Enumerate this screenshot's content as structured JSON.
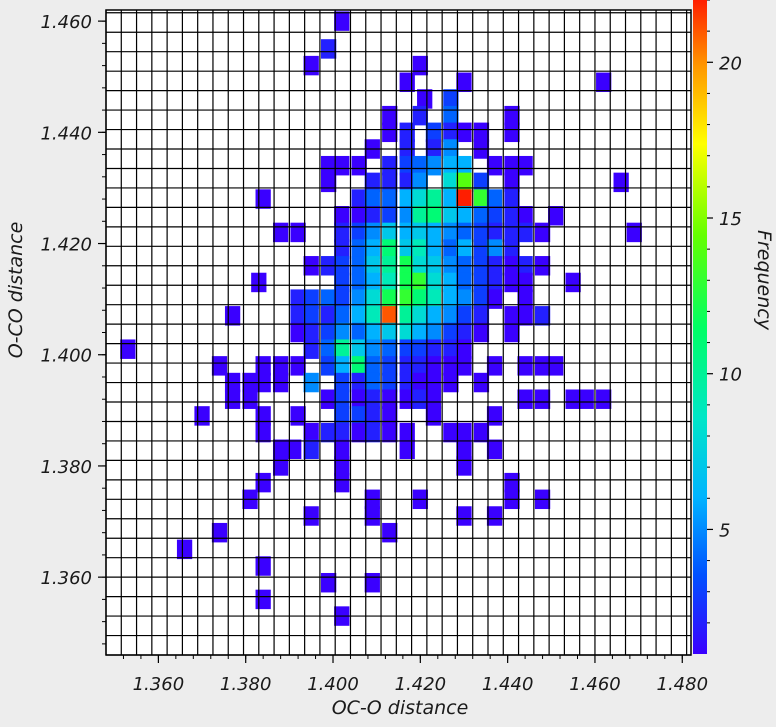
{
  "chart_data": {
    "type": "heatmap",
    "title": "",
    "xlabel": "OC-O distance",
    "ylabel": "O-CO distance",
    "colorbar_label": "Frequency",
    "xlim": [
      1.348,
      1.482
    ],
    "ylim": [
      1.346,
      1.462
    ],
    "bin_width": 0.0035,
    "x_ticks": [
      "1.360",
      "1.380",
      "1.400",
      "1.420",
      "1.440",
      "1.460",
      "1.480"
    ],
    "y_ticks": [
      "1.360",
      "1.380",
      "1.400",
      "1.420",
      "1.440",
      "1.460"
    ],
    "colorbar_ticks": [
      "5",
      "10",
      "15",
      "20"
    ],
    "colorbar_range": [
      1,
      22
    ],
    "colors": {
      "background": "#ededed",
      "cell_empty": "#ffffff",
      "grid": "#000000"
    },
    "bins": [
      [
        1.402,
        1.46,
        1
      ],
      [
        1.399,
        1.455,
        2
      ],
      [
        1.395,
        1.452,
        1
      ],
      [
        1.42,
        1.452,
        1
      ],
      [
        1.417,
        1.449,
        1
      ],
      [
        1.43,
        1.449,
        1
      ],
      [
        1.462,
        1.449,
        1
      ],
      [
        1.421,
        1.446,
        1
      ],
      [
        1.427,
        1.446,
        3
      ],
      [
        1.413,
        1.443,
        1
      ],
      [
        1.42,
        1.443,
        2
      ],
      [
        1.427,
        1.443,
        4
      ],
      [
        1.441,
        1.443,
        1
      ],
      [
        1.413,
        1.44,
        1
      ],
      [
        1.417,
        1.44,
        2
      ],
      [
        1.423,
        1.44,
        3
      ],
      [
        1.427,
        1.44,
        2
      ],
      [
        1.43,
        1.44,
        1
      ],
      [
        1.434,
        1.44,
        1
      ],
      [
        1.441,
        1.44,
        1
      ],
      [
        1.409,
        1.437,
        1
      ],
      [
        1.417,
        1.437,
        2
      ],
      [
        1.423,
        1.437,
        2
      ],
      [
        1.427,
        1.437,
        5
      ],
      [
        1.434,
        1.437,
        1
      ],
      [
        1.399,
        1.434,
        1
      ],
      [
        1.402,
        1.434,
        1
      ],
      [
        1.406,
        1.434,
        1
      ],
      [
        1.413,
        1.434,
        2
      ],
      [
        1.417,
        1.434,
        3
      ],
      [
        1.42,
        1.434,
        4
      ],
      [
        1.423,
        1.434,
        5
      ],
      [
        1.427,
        1.434,
        6
      ],
      [
        1.43,
        1.434,
        6
      ],
      [
        1.437,
        1.434,
        1
      ],
      [
        1.441,
        1.434,
        1
      ],
      [
        1.444,
        1.434,
        1
      ],
      [
        1.399,
        1.431,
        1
      ],
      [
        1.409,
        1.431,
        2
      ],
      [
        1.413,
        1.431,
        2
      ],
      [
        1.417,
        1.431,
        2
      ],
      [
        1.42,
        1.431,
        5
      ],
      [
        1.427,
        1.431,
        8
      ],
      [
        1.43,
        1.431,
        14
      ],
      [
        1.434,
        1.431,
        3
      ],
      [
        1.441,
        1.431,
        1
      ],
      [
        1.466,
        1.431,
        1
      ],
      [
        1.384,
        1.428,
        1
      ],
      [
        1.406,
        1.428,
        2
      ],
      [
        1.409,
        1.428,
        4
      ],
      [
        1.413,
        1.428,
        4
      ],
      [
        1.417,
        1.428,
        6
      ],
      [
        1.42,
        1.428,
        8
      ],
      [
        1.423,
        1.428,
        10
      ],
      [
        1.427,
        1.428,
        6
      ],
      [
        1.43,
        1.428,
        22
      ],
      [
        1.434,
        1.428,
        13
      ],
      [
        1.437,
        1.428,
        4
      ],
      [
        1.441,
        1.428,
        2
      ],
      [
        1.402,
        1.425,
        1
      ],
      [
        1.406,
        1.425,
        1
      ],
      [
        1.409,
        1.425,
        2
      ],
      [
        1.413,
        1.425,
        3
      ],
      [
        1.417,
        1.425,
        5
      ],
      [
        1.42,
        1.425,
        10
      ],
      [
        1.423,
        1.425,
        11
      ],
      [
        1.427,
        1.425,
        7
      ],
      [
        1.43,
        1.425,
        6
      ],
      [
        1.434,
        1.425,
        4
      ],
      [
        1.437,
        1.425,
        3
      ],
      [
        1.441,
        1.425,
        2
      ],
      [
        1.444,
        1.425,
        1
      ],
      [
        1.451,
        1.425,
        1
      ],
      [
        1.388,
        1.422,
        1
      ],
      [
        1.392,
        1.422,
        1
      ],
      [
        1.402,
        1.422,
        2
      ],
      [
        1.406,
        1.422,
        3
      ],
      [
        1.409,
        1.422,
        5
      ],
      [
        1.413,
        1.422,
        7
      ],
      [
        1.417,
        1.422,
        6
      ],
      [
        1.42,
        1.422,
        7
      ],
      [
        1.423,
        1.422,
        6
      ],
      [
        1.427,
        1.422,
        5
      ],
      [
        1.43,
        1.422,
        4
      ],
      [
        1.434,
        1.422,
        3
      ],
      [
        1.437,
        1.422,
        2
      ],
      [
        1.441,
        1.422,
        2
      ],
      [
        1.444,
        1.422,
        2
      ],
      [
        1.448,
        1.422,
        1
      ],
      [
        1.469,
        1.422,
        1
      ],
      [
        1.402,
        1.419,
        2
      ],
      [
        1.406,
        1.419,
        4
      ],
      [
        1.409,
        1.419,
        6
      ],
      [
        1.413,
        1.419,
        11
      ],
      [
        1.417,
        1.419,
        7
      ],
      [
        1.42,
        1.419,
        9
      ],
      [
        1.423,
        1.419,
        6
      ],
      [
        1.427,
        1.419,
        4
      ],
      [
        1.43,
        1.419,
        6
      ],
      [
        1.434,
        1.419,
        3
      ],
      [
        1.437,
        1.419,
        5
      ],
      [
        1.441,
        1.419,
        2
      ],
      [
        1.395,
        1.416,
        1
      ],
      [
        1.399,
        1.416,
        2
      ],
      [
        1.402,
        1.416,
        3
      ],
      [
        1.406,
        1.416,
        4
      ],
      [
        1.409,
        1.416,
        7
      ],
      [
        1.413,
        1.416,
        10
      ],
      [
        1.417,
        1.416,
        12
      ],
      [
        1.42,
        1.416,
        8
      ],
      [
        1.423,
        1.416,
        7
      ],
      [
        1.427,
        1.416,
        5
      ],
      [
        1.43,
        1.416,
        4
      ],
      [
        1.434,
        1.416,
        3
      ],
      [
        1.437,
        1.416,
        2
      ],
      [
        1.441,
        1.416,
        1
      ],
      [
        1.444,
        1.416,
        2
      ],
      [
        1.448,
        1.416,
        1
      ],
      [
        1.383,
        1.413,
        1
      ],
      [
        1.402,
        1.413,
        3
      ],
      [
        1.406,
        1.413,
        4
      ],
      [
        1.409,
        1.413,
        6
      ],
      [
        1.413,
        1.413,
        9
      ],
      [
        1.417,
        1.413,
        12
      ],
      [
        1.42,
        1.413,
        13
      ],
      [
        1.423,
        1.413,
        8
      ],
      [
        1.427,
        1.413,
        6
      ],
      [
        1.43,
        1.413,
        4
      ],
      [
        1.434,
        1.413,
        3
      ],
      [
        1.437,
        1.413,
        2
      ],
      [
        1.441,
        1.413,
        1
      ],
      [
        1.444,
        1.413,
        1
      ],
      [
        1.455,
        1.413,
        1
      ],
      [
        1.392,
        1.41,
        2
      ],
      [
        1.395,
        1.41,
        3
      ],
      [
        1.399,
        1.41,
        4
      ],
      [
        1.402,
        1.41,
        3
      ],
      [
        1.406,
        1.41,
        5
      ],
      [
        1.409,
        1.41,
        8
      ],
      [
        1.413,
        1.41,
        12
      ],
      [
        1.417,
        1.41,
        13
      ],
      [
        1.42,
        1.41,
        11
      ],
      [
        1.423,
        1.41,
        9
      ],
      [
        1.427,
        1.41,
        6
      ],
      [
        1.43,
        1.41,
        5
      ],
      [
        1.434,
        1.41,
        3
      ],
      [
        1.437,
        1.41,
        1
      ],
      [
        1.444,
        1.41,
        1
      ],
      [
        1.377,
        1.407,
        1
      ],
      [
        1.392,
        1.407,
        2
      ],
      [
        1.395,
        1.407,
        3
      ],
      [
        1.399,
        1.407,
        2
      ],
      [
        1.402,
        1.407,
        4
      ],
      [
        1.406,
        1.407,
        6
      ],
      [
        1.409,
        1.407,
        9
      ],
      [
        1.413,
        1.407,
        21
      ],
      [
        1.417,
        1.407,
        10
      ],
      [
        1.42,
        1.407,
        8
      ],
      [
        1.423,
        1.407,
        6
      ],
      [
        1.427,
        1.407,
        5
      ],
      [
        1.43,
        1.407,
        3
      ],
      [
        1.434,
        1.407,
        2
      ],
      [
        1.441,
        1.407,
        1
      ],
      [
        1.444,
        1.407,
        1
      ],
      [
        1.448,
        1.407,
        2
      ],
      [
        1.392,
        1.404,
        1
      ],
      [
        1.395,
        1.404,
        2
      ],
      [
        1.399,
        1.404,
        3
      ],
      [
        1.402,
        1.404,
        5
      ],
      [
        1.406,
        1.404,
        4
      ],
      [
        1.409,
        1.404,
        6
      ],
      [
        1.413,
        1.404,
        7
      ],
      [
        1.417,
        1.404,
        8
      ],
      [
        1.42,
        1.404,
        6
      ],
      [
        1.423,
        1.404,
        5
      ],
      [
        1.427,
        1.404,
        3
      ],
      [
        1.43,
        1.404,
        2
      ],
      [
        1.434,
        1.404,
        1
      ],
      [
        1.441,
        1.404,
        1
      ],
      [
        1.353,
        1.401,
        1
      ],
      [
        1.395,
        1.401,
        2
      ],
      [
        1.399,
        1.401,
        4
      ],
      [
        1.402,
        1.401,
        10
      ],
      [
        1.406,
        1.401,
        7
      ],
      [
        1.409,
        1.401,
        5
      ],
      [
        1.413,
        1.401,
        4
      ],
      [
        1.417,
        1.401,
        3
      ],
      [
        1.42,
        1.401,
        3
      ],
      [
        1.423,
        1.401,
        2
      ],
      [
        1.427,
        1.401,
        2
      ],
      [
        1.43,
        1.401,
        1
      ],
      [
        1.374,
        1.398,
        1
      ],
      [
        1.384,
        1.398,
        1
      ],
      [
        1.388,
        1.398,
        1
      ],
      [
        1.392,
        1.398,
        1
      ],
      [
        1.399,
        1.398,
        3
      ],
      [
        1.402,
        1.398,
        6
      ],
      [
        1.406,
        1.398,
        11
      ],
      [
        1.409,
        1.398,
        4
      ],
      [
        1.413,
        1.398,
        3
      ],
      [
        1.417,
        1.398,
        2
      ],
      [
        1.42,
        1.398,
        2
      ],
      [
        1.423,
        1.398,
        1
      ],
      [
        1.427,
        1.398,
        1
      ],
      [
        1.43,
        1.398,
        1
      ],
      [
        1.437,
        1.398,
        1
      ],
      [
        1.444,
        1.398,
        1
      ],
      [
        1.448,
        1.398,
        1
      ],
      [
        1.451,
        1.398,
        1
      ],
      [
        1.377,
        1.395,
        1
      ],
      [
        1.381,
        1.395,
        1
      ],
      [
        1.384,
        1.395,
        1
      ],
      [
        1.388,
        1.395,
        1
      ],
      [
        1.395,
        1.395,
        5
      ],
      [
        1.402,
        1.395,
        3
      ],
      [
        1.406,
        1.395,
        2
      ],
      [
        1.409,
        1.395,
        4
      ],
      [
        1.413,
        1.395,
        3
      ],
      [
        1.417,
        1.395,
        2
      ],
      [
        1.42,
        1.395,
        1
      ],
      [
        1.423,
        1.395,
        1
      ],
      [
        1.427,
        1.395,
        1
      ],
      [
        1.434,
        1.395,
        1
      ],
      [
        1.377,
        1.392,
        1
      ],
      [
        1.381,
        1.392,
        1
      ],
      [
        1.399,
        1.392,
        1
      ],
      [
        1.402,
        1.392,
        3
      ],
      [
        1.406,
        1.392,
        1
      ],
      [
        1.409,
        1.392,
        2
      ],
      [
        1.413,
        1.392,
        1
      ],
      [
        1.417,
        1.392,
        1
      ],
      [
        1.42,
        1.392,
        2
      ],
      [
        1.423,
        1.392,
        1
      ],
      [
        1.444,
        1.392,
        1
      ],
      [
        1.448,
        1.392,
        1
      ],
      [
        1.455,
        1.392,
        1
      ],
      [
        1.458,
        1.392,
        1
      ],
      [
        1.462,
        1.392,
        1
      ],
      [
        1.37,
        1.389,
        1
      ],
      [
        1.384,
        1.389,
        1
      ],
      [
        1.392,
        1.389,
        1
      ],
      [
        1.402,
        1.389,
        3
      ],
      [
        1.406,
        1.389,
        3
      ],
      [
        1.409,
        1.389,
        2
      ],
      [
        1.413,
        1.389,
        1
      ],
      [
        1.423,
        1.389,
        1
      ],
      [
        1.437,
        1.389,
        1
      ],
      [
        1.384,
        1.386,
        1
      ],
      [
        1.395,
        1.386,
        1
      ],
      [
        1.399,
        1.386,
        2
      ],
      [
        1.402,
        1.386,
        2
      ],
      [
        1.406,
        1.386,
        1
      ],
      [
        1.409,
        1.386,
        2
      ],
      [
        1.413,
        1.386,
        1
      ],
      [
        1.417,
        1.386,
        1
      ],
      [
        1.427,
        1.386,
        1
      ],
      [
        1.43,
        1.386,
        1
      ],
      [
        1.434,
        1.386,
        1
      ],
      [
        1.388,
        1.383,
        1
      ],
      [
        1.391,
        1.383,
        1
      ],
      [
        1.395,
        1.383,
        2
      ],
      [
        1.402,
        1.383,
        1
      ],
      [
        1.417,
        1.383,
        1
      ],
      [
        1.43,
        1.383,
        1
      ],
      [
        1.437,
        1.383,
        1
      ],
      [
        1.388,
        1.38,
        1
      ],
      [
        1.402,
        1.38,
        1
      ],
      [
        1.43,
        1.38,
        1
      ],
      [
        1.384,
        1.377,
        1
      ],
      [
        1.402,
        1.377,
        1
      ],
      [
        1.441,
        1.377,
        1
      ],
      [
        1.381,
        1.374,
        1
      ],
      [
        1.409,
        1.374,
        1
      ],
      [
        1.42,
        1.374,
        1
      ],
      [
        1.441,
        1.374,
        1
      ],
      [
        1.448,
        1.374,
        1
      ],
      [
        1.395,
        1.371,
        1
      ],
      [
        1.409,
        1.371,
        1
      ],
      [
        1.43,
        1.371,
        1
      ],
      [
        1.437,
        1.371,
        1
      ],
      [
        1.374,
        1.368,
        1
      ],
      [
        1.413,
        1.368,
        1
      ],
      [
        1.366,
        1.365,
        1
      ],
      [
        1.384,
        1.362,
        1
      ],
      [
        1.399,
        1.359,
        1
      ],
      [
        1.409,
        1.359,
        1
      ],
      [
        1.384,
        1.356,
        1
      ],
      [
        1.402,
        1.353,
        1
      ]
    ]
  }
}
